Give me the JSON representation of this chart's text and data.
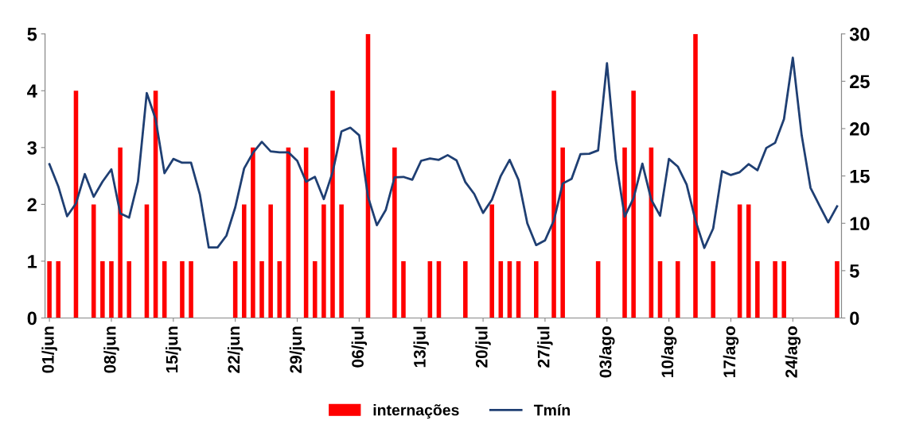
{
  "chart_data": {
    "type": "bar",
    "categories": [
      "01/jun",
      null,
      null,
      null,
      null,
      null,
      null,
      "08/jun",
      null,
      null,
      null,
      null,
      null,
      null,
      "15/jun",
      null,
      null,
      null,
      null,
      null,
      null,
      "22/jun",
      null,
      null,
      null,
      null,
      null,
      null,
      "29/jun",
      null,
      null,
      null,
      null,
      null,
      null,
      "06/jul",
      null,
      null,
      null,
      null,
      null,
      null,
      "13/jul",
      null,
      null,
      null,
      null,
      null,
      null,
      "20/jul",
      null,
      null,
      null,
      null,
      null,
      null,
      "27/jul",
      null,
      null,
      null,
      null,
      null,
      null,
      "03/ago",
      null,
      null,
      null,
      null,
      null,
      null,
      "10/ago",
      null,
      null,
      null,
      null,
      null,
      null,
      "17/ago",
      null,
      null,
      null,
      null,
      null,
      null,
      "24/ago",
      null,
      null,
      null,
      null,
      null
    ],
    "series": [
      {
        "name": "internações",
        "color": "#ff0000",
        "values": [
          1,
          1,
          0,
          4,
          0,
          2,
          1,
          1,
          3,
          1,
          0,
          2,
          4,
          1,
          0,
          1,
          1,
          0,
          0,
          0,
          0,
          1,
          2,
          3,
          1,
          2,
          1,
          3,
          0,
          3,
          1,
          2,
          4,
          2,
          0,
          0,
          5,
          0,
          0,
          3,
          1,
          0,
          0,
          1,
          1,
          0,
          0,
          1,
          0,
          0,
          2,
          1,
          1,
          1,
          0,
          1,
          0,
          4,
          3,
          0,
          0,
          0,
          1,
          0,
          0,
          3,
          4,
          0,
          3,
          1,
          0,
          1,
          0,
          5,
          0,
          1,
          0,
          0,
          2,
          2,
          1,
          0,
          1,
          1,
          0,
          0,
          0,
          0,
          0,
          1
        ]
      },
      {
        "name": "Tmín",
        "type": "line",
        "axis": "y2",
        "color": "#1f3f73",
        "values": [
          16.25,
          13.9,
          10.75,
          12.1,
          15.2,
          12.8,
          14.4,
          15.7,
          11.05,
          10.6,
          14.4,
          23.75,
          21.0,
          15.3,
          16.8,
          16.4,
          16.4,
          13.05,
          7.45,
          7.45,
          8.7,
          11.7,
          15.8,
          17.45,
          18.6,
          17.6,
          17.5,
          17.5,
          16.6,
          14.4,
          14.9,
          12.55,
          15.4,
          19.7,
          20.1,
          19.3,
          12.8,
          9.8,
          11.4,
          14.85,
          14.9,
          14.6,
          16.6,
          16.85,
          16.7,
          17.2,
          16.65,
          14.35,
          13.1,
          11.1,
          12.5,
          15.0,
          16.7,
          14.6,
          10.0,
          7.7,
          8.2,
          10.3,
          14.2,
          14.7,
          17.3,
          17.35,
          17.7,
          26.9,
          16.7,
          10.7,
          12.65,
          16.3,
          12.5,
          10.8,
          16.8,
          16.0,
          14.1,
          10.3,
          7.4,
          9.45,
          15.5,
          15.1,
          15.4,
          16.25,
          15.6,
          17.95,
          18.5,
          21.0,
          27.5,
          19.3,
          13.75,
          11.9,
          10.1,
          11.8
        ]
      }
    ],
    "ylim": [
      0,
      5
    ],
    "yticks": [
      0,
      1,
      2,
      3,
      4,
      5
    ],
    "y2lim": [
      0,
      30
    ],
    "y2ticks": [
      0,
      5,
      10,
      15,
      20,
      25,
      30
    ],
    "legend": "bottom",
    "grid": false
  }
}
